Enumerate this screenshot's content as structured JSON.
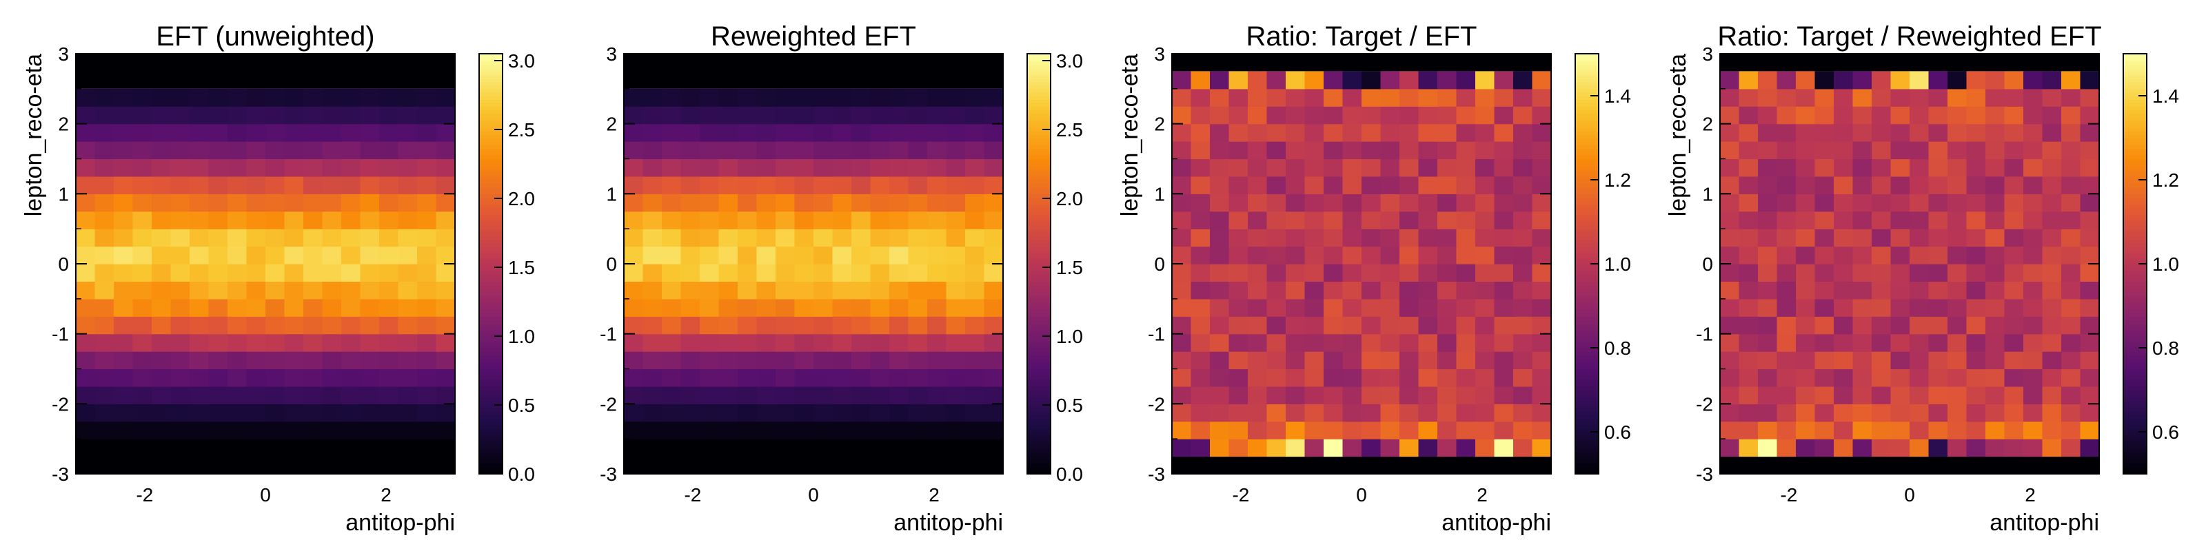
{
  "chart_data": [
    {
      "type": "heatmap",
      "title": "EFT (unweighted)",
      "xlabel": "antitop-phi",
      "ylabel": "lepton_reco-eta",
      "xlim": [
        -3.1416,
        3.1416
      ],
      "ylim": [
        -3,
        3
      ],
      "x_ticks": [
        -2,
        0,
        2
      ],
      "y_ticks": [
        -3,
        -2,
        -1,
        0,
        1,
        2,
        3
      ],
      "colorbar": {
        "min": 0,
        "max": 3.05,
        "ticks": [
          "0.0",
          "0.5",
          "1.0",
          "1.5",
          "2.0",
          "2.5",
          "3.0"
        ],
        "tick_values": [
          0,
          0.5,
          1,
          1.5,
          2,
          2.5,
          3
        ],
        "colormap": "inferno"
      },
      "nx": 20,
      "y_bins": [
        -2.5,
        -2.25,
        -2.0,
        -1.75,
        -1.5,
        -1.25,
        -1.0,
        -0.75,
        -0.5,
        -0.25,
        0.0,
        0.25,
        0.5,
        0.75,
        1.0,
        1.25,
        1.5,
        1.75,
        2.0,
        2.25,
        2.5
      ],
      "row_means": [
        0.1,
        0.3,
        0.55,
        0.8,
        1.05,
        1.5,
        1.95,
        2.25,
        2.45,
        2.65,
        2.7,
        2.6,
        2.4,
        2.15,
        1.85,
        1.4,
        1.0,
        0.75,
        0.5,
        0.28
      ],
      "empty_y_ranges": [
        [
          -3,
          -2.5
        ],
        [
          2.5,
          3
        ]
      ]
    },
    {
      "type": "heatmap",
      "title": "Reweighted EFT",
      "xlabel": "antitop-phi",
      "ylabel": "",
      "xlim": [
        -3.1416,
        3.1416
      ],
      "ylim": [
        -3,
        3
      ],
      "x_ticks": [
        -2,
        0,
        2
      ],
      "y_ticks": [
        -3,
        -2,
        -1,
        0,
        1,
        2,
        3
      ],
      "colorbar": {
        "min": 0,
        "max": 3.05,
        "ticks": [
          "0.0",
          "0.5",
          "1.0",
          "1.5",
          "2.0",
          "2.5",
          "3.0"
        ],
        "tick_values": [
          0,
          0.5,
          1,
          1.5,
          2,
          2.5,
          3
        ],
        "colormap": "inferno"
      },
      "nx": 20,
      "y_bins": [
        -2.5,
        -2.25,
        -2.0,
        -1.75,
        -1.5,
        -1.25,
        -1.0,
        -0.75,
        -0.5,
        -0.25,
        0.0,
        0.25,
        0.5,
        0.75,
        1.0,
        1.25,
        1.5,
        1.75,
        2.0,
        2.25,
        2.5
      ],
      "row_means": [
        0.1,
        0.3,
        0.55,
        0.8,
        1.05,
        1.5,
        1.95,
        2.25,
        2.45,
        2.65,
        2.7,
        2.6,
        2.4,
        2.15,
        1.85,
        1.4,
        1.0,
        0.75,
        0.5,
        0.28
      ],
      "empty_y_ranges": [
        [
          -3,
          -2.5
        ],
        [
          2.5,
          3
        ]
      ]
    },
    {
      "type": "heatmap",
      "title": "Ratio: Target / EFT",
      "xlabel": "antitop-phi",
      "ylabel": "lepton_reco-eta",
      "xlim": [
        -3.1416,
        3.1416
      ],
      "ylim": [
        -3,
        3
      ],
      "x_ticks": [
        -2,
        0,
        2
      ],
      "y_ticks": [
        -3,
        -2,
        -1,
        0,
        1,
        2,
        3
      ],
      "colorbar": {
        "min": 0.5,
        "max": 1.5,
        "ticks": [
          "0.6",
          "0.8",
          "1.0",
          "1.2",
          "1.4"
        ],
        "tick_values": [
          0.6,
          0.8,
          1.0,
          1.2,
          1.4
        ],
        "colormap": "inferno"
      },
      "nx": 20,
      "y_bins": [
        -2.75,
        -2.5,
        -2.25,
        -2.0,
        -1.75,
        -1.5,
        -1.25,
        -1.0,
        -0.75,
        -0.5,
        -0.25,
        0.0,
        0.25,
        0.5,
        0.75,
        1.0,
        1.25,
        1.5,
        1.75,
        2.0,
        2.25,
        2.5,
        2.75
      ],
      "row_means": [
        1.1,
        1.15,
        1.05,
        1.02,
        1.0,
        1.0,
        1.0,
        1.0,
        1.0,
        1.0,
        1.0,
        1.0,
        1.0,
        1.0,
        1.0,
        1.0,
        1.0,
        1.0,
        1.02,
        1.05,
        1.08,
        1.0
      ],
      "empty_y_ranges": [
        [
          -3,
          -2.75
        ],
        [
          2.75,
          3
        ]
      ]
    },
    {
      "type": "heatmap",
      "title": "Ratio: Target / Reweighted EFT",
      "xlabel": "antitop-phi",
      "ylabel": "lepton_reco-eta",
      "xlim": [
        -3.1416,
        3.1416
      ],
      "ylim": [
        -3,
        3
      ],
      "x_ticks": [
        -2,
        0,
        2
      ],
      "y_ticks": [
        -3,
        -2,
        -1,
        0,
        1,
        2,
        3
      ],
      "colorbar": {
        "min": 0.5,
        "max": 1.5,
        "ticks": [
          "0.6",
          "0.8",
          "1.0",
          "1.2",
          "1.4"
        ],
        "tick_values": [
          0.6,
          0.8,
          1.0,
          1.2,
          1.4
        ],
        "colormap": "inferno"
      },
      "nx": 20,
      "y_bins": [
        -2.75,
        -2.5,
        -2.25,
        -2.0,
        -1.75,
        -1.5,
        -1.25,
        -1.0,
        -0.75,
        -0.5,
        -0.25,
        0.0,
        0.25,
        0.5,
        0.75,
        1.0,
        1.25,
        1.5,
        1.75,
        2.0,
        2.25,
        2.5,
        2.75
      ],
      "row_means": [
        1.1,
        1.15,
        1.05,
        1.02,
        1.0,
        1.0,
        1.0,
        1.0,
        1.0,
        1.0,
        1.0,
        1.0,
        1.0,
        1.0,
        1.0,
        1.0,
        1.0,
        1.0,
        1.02,
        1.05,
        1.08,
        1.0
      ],
      "empty_y_ranges": [
        [
          -3,
          -2.75
        ],
        [
          2.75,
          3
        ]
      ]
    }
  ]
}
